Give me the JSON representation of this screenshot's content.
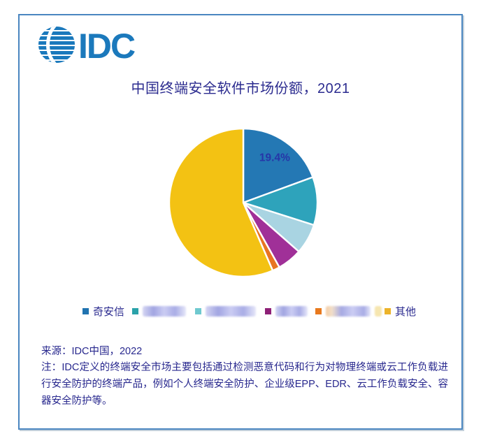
{
  "logo": {
    "text": "IDC",
    "color": "#1b79bc"
  },
  "title": {
    "text": "中国终端安全软件市场份额，2021",
    "color": "#2b2b8f"
  },
  "chart_data": {
    "type": "pie",
    "title": "中国终端安全软件市场份额，2021",
    "direction": "clockwise",
    "start_angle_deg": 0,
    "legend_position": "bottom",
    "gap_color": "#ffffff",
    "label_color": "#2636a8",
    "only_visible_value_label": "19.4%",
    "values_estimated_from_arcs": true,
    "slices": [
      {
        "name": "奇安信",
        "redacted": false,
        "value": 19.4,
        "label": "19.4%",
        "color": "#2478b4",
        "legend_color": "#2073b0"
      },
      {
        "name": "",
        "redacted": true,
        "value": 10.5,
        "label": "",
        "color": "#2ea3bb",
        "legend_color": "#2aa2a9"
      },
      {
        "name": "",
        "redacted": true,
        "value": 6.6,
        "label": "",
        "color": "#a9d4e2",
        "legend_color": "#6fc9cf"
      },
      {
        "name": "",
        "redacted": true,
        "value": 5.4,
        "label": "",
        "color": "#a03098",
        "legend_color": "#8e2077"
      },
      {
        "name": "",
        "redacted": true,
        "value": 1.6,
        "label": "",
        "color": "#e87522",
        "legend_color": "#e8791d"
      },
      {
        "name": "其他",
        "redacted": false,
        "value": 56.5,
        "label": "",
        "color": "#f3c213",
        "legend_color": "#ecb32a"
      }
    ]
  },
  "footer": {
    "source": "来源：IDC中国，2022",
    "note": "注：IDC定义的终端安全市场主要包括通过检测恶意代码和行为对物理终端或云工作负载进行安全防护的终端产品，例如个人终端安全防护、企业级EPP、EDR、云工作负载安全、容器安全防护等。"
  }
}
